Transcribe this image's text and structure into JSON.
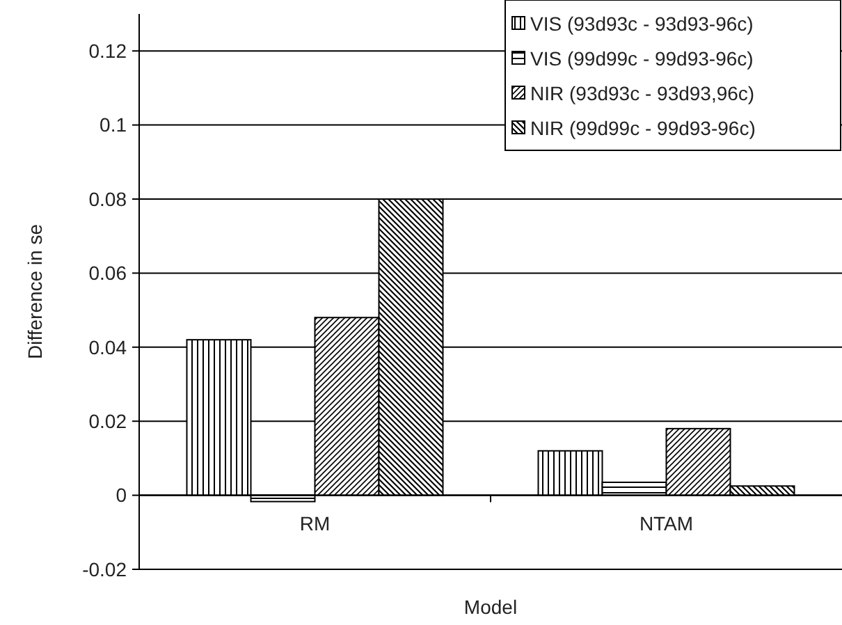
{
  "chart_data": {
    "type": "bar",
    "xlabel": "Model",
    "ylabel": "Difference in se",
    "categories": [
      "RM",
      "NTAM"
    ],
    "series": [
      {
        "name": "VIS (93d93c - 93d93-96c)",
        "color": "#000000",
        "values": [
          0.042,
          0.012
        ]
      },
      {
        "name": "VIS (99d99c - 99d93-96c)",
        "color": "#000000",
        "values": [
          -0.0017,
          0.0035
        ]
      },
      {
        "name": "NIR (93d93c - 93d93,96c)",
        "color": "#000000",
        "values": [
          0.048,
          0.018
        ]
      },
      {
        "name": "NIR (99d99c - 99d93-96c)",
        "color": "#000000",
        "values": [
          0.08,
          0.0025
        ]
      }
    ],
    "ylim": [
      -0.02,
      0.13
    ],
    "yticks": [
      -0.02,
      0,
      0.02,
      0.04,
      0.06,
      0.08,
      0.1,
      0.12
    ],
    "grid": "y",
    "legend": "top right"
  }
}
